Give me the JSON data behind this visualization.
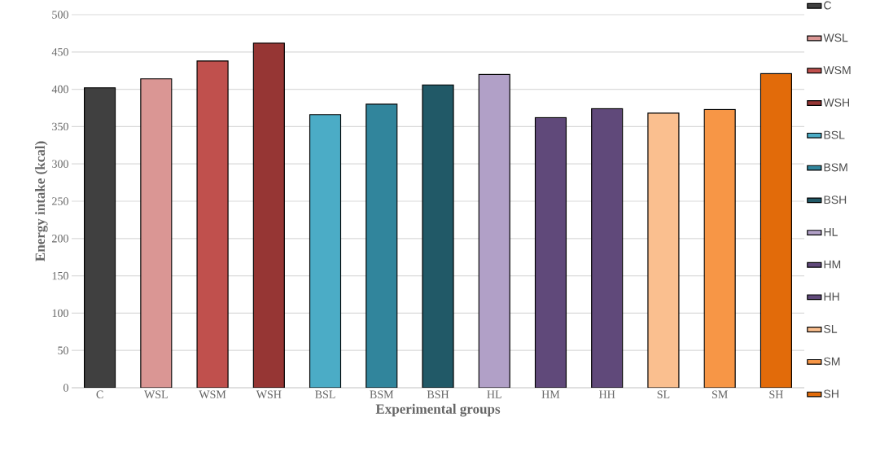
{
  "chart_data": {
    "type": "bar",
    "xlabel": "Experimental groups",
    "ylabel": "Energy intake (kcal)",
    "categories": [
      "C",
      "WSL",
      "WSM",
      "WSH",
      "BSL",
      "BSM",
      "BSH",
      "HL",
      "HM",
      "HH",
      "SL",
      "SM",
      "SH"
    ],
    "series": [
      {
        "name": "C",
        "color": "#404040",
        "values": [
          402,
          null,
          null,
          null,
          null,
          null,
          null,
          null,
          null,
          null,
          null,
          null,
          null
        ]
      },
      {
        "name": "WSL",
        "color": "#da9694",
        "values": [
          null,
          414,
          null,
          null,
          null,
          null,
          null,
          null,
          null,
          null,
          null,
          null,
          null
        ]
      },
      {
        "name": "WSM",
        "color": "#c0504d",
        "values": [
          null,
          null,
          438,
          null,
          null,
          null,
          null,
          null,
          null,
          null,
          null,
          null,
          null
        ]
      },
      {
        "name": "WSH",
        "color": "#963634",
        "values": [
          null,
          null,
          null,
          462,
          null,
          null,
          null,
          null,
          null,
          null,
          null,
          null,
          null
        ]
      },
      {
        "name": "BSL",
        "color": "#4bacc6",
        "values": [
          null,
          null,
          null,
          null,
          366,
          null,
          null,
          null,
          null,
          null,
          null,
          null,
          null
        ]
      },
      {
        "name": "BSM",
        "color": "#31859c",
        "values": [
          null,
          null,
          null,
          null,
          null,
          380,
          null,
          null,
          null,
          null,
          null,
          null,
          null
        ]
      },
      {
        "name": "BSH",
        "color": "#215967",
        "values": [
          null,
          null,
          null,
          null,
          null,
          null,
          406,
          null,
          null,
          null,
          null,
          null,
          null
        ]
      },
      {
        "name": "HL",
        "color": "#b1a0c7",
        "values": [
          null,
          null,
          null,
          null,
          null,
          null,
          null,
          420,
          null,
          null,
          null,
          null,
          null
        ]
      },
      {
        "name": "HM",
        "color": "#60497a",
        "values": [
          null,
          null,
          null,
          null,
          null,
          null,
          null,
          null,
          362,
          null,
          null,
          null,
          null
        ]
      },
      {
        "name": "HH",
        "color": "#60497a",
        "values": [
          null,
          null,
          null,
          null,
          null,
          null,
          null,
          null,
          null,
          374,
          null,
          null,
          null
        ]
      },
      {
        "name": "SL",
        "color": "#fabf8f",
        "values": [
          null,
          null,
          null,
          null,
          null,
          null,
          null,
          null,
          null,
          null,
          368,
          null,
          null
        ]
      },
      {
        "name": "SM",
        "color": "#f79646",
        "values": [
          null,
          null,
          null,
          null,
          null,
          null,
          null,
          null,
          null,
          null,
          null,
          373,
          null
        ]
      },
      {
        "name": "SH",
        "color": "#e26b0a",
        "values": [
          null,
          null,
          null,
          null,
          null,
          null,
          null,
          null,
          null,
          null,
          null,
          null,
          421
        ]
      }
    ],
    "ylim": [
      0,
      500
    ],
    "yticks": [
      0,
      50,
      100,
      150,
      200,
      250,
      300,
      350,
      400,
      450,
      500
    ],
    "grid": "y",
    "legend": "right"
  }
}
